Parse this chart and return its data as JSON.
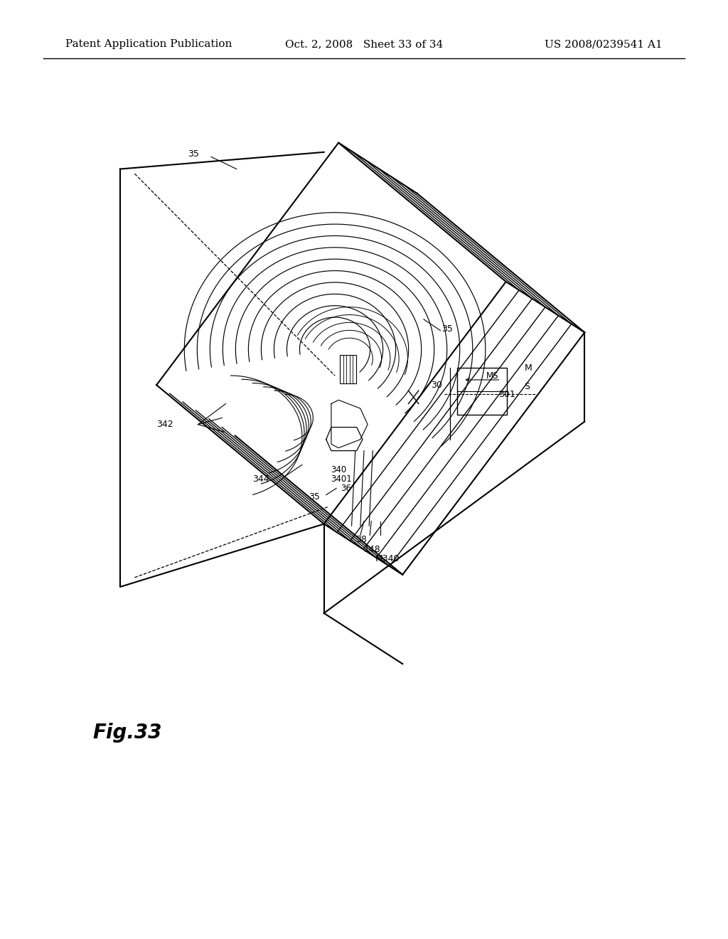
{
  "bg_color": "#ffffff",
  "header_left": "Patent Application Publication",
  "header_center": "Oct. 2, 2008   Sheet 33 of 34",
  "header_right": "US 2008/0239541 A1",
  "fig_label": "Fig.33",
  "title_fontsize": 11,
  "fig_label_fontsize": 20
}
